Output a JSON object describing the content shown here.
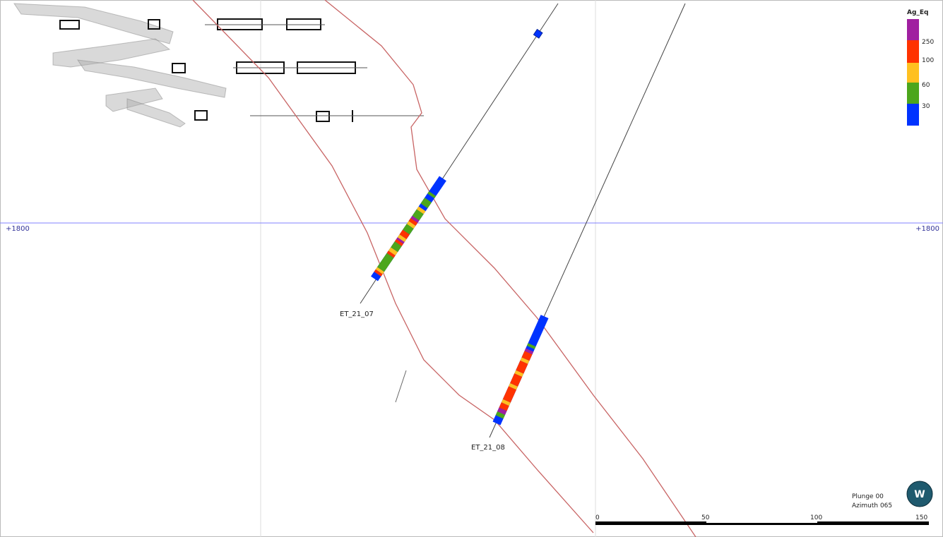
{
  "legend": {
    "title": "Ag_Eq",
    "labels": [
      250,
      100,
      60,
      30
    ]
  },
  "elevation": {
    "left": "+1800",
    "right": "+1800"
  },
  "drillholes": [
    {
      "label": "ET_21_07"
    },
    {
      "label": "ET_21_08"
    }
  ],
  "view": {
    "plunge": "Plunge 00",
    "azimuth": "Azimuth 065"
  },
  "logo": "W",
  "scale_bar": {
    "labels": [
      0,
      50,
      100,
      150
    ]
  }
}
